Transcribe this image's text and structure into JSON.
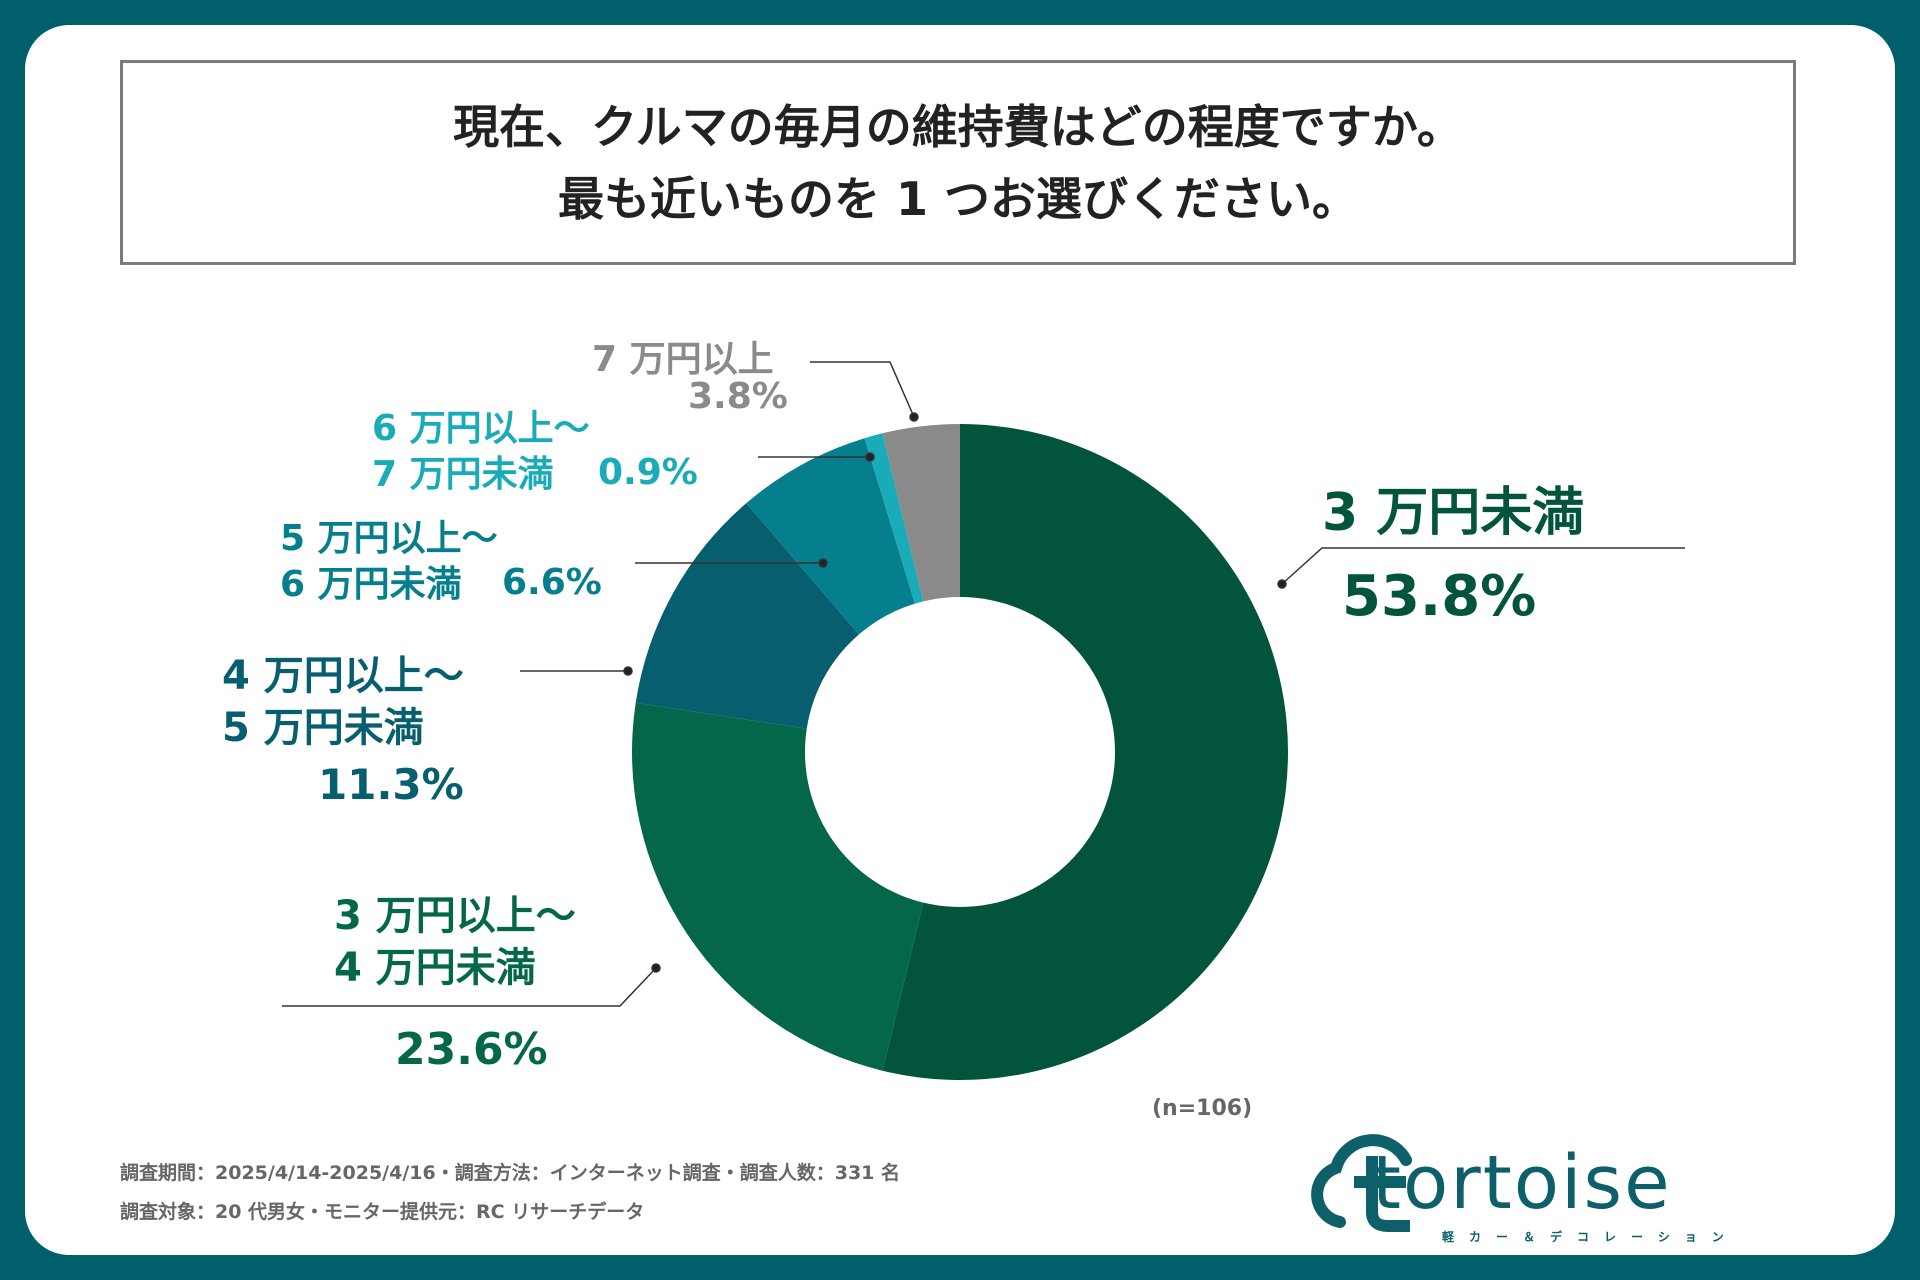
{
  "title": {
    "line1": "現在、クルマの毎月の維持費はどの程度ですか。",
    "line2": "最も近いものを 1 つお選びください。"
  },
  "chart_data": {
    "type": "pie",
    "variant": "donut",
    "title": "現在、クルマの毎月の維持費はどの程度ですか。最も近いものを 1 つお選びください。",
    "categories": [
      "3 万円未満",
      "3 万円以上～4 万円未満",
      "4 万円以上～5 万円未満",
      "5 万円以上～6 万円未満",
      "6 万円以上～7 万円未満",
      "7 万円以上"
    ],
    "values": [
      53.8,
      23.6,
      11.3,
      6.6,
      0.9,
      3.8
    ],
    "colors": [
      "#02553c",
      "#05674a",
      "#075e6f",
      "#057f8d",
      "#1aabb8",
      "#8a8a8a"
    ],
    "sample_note": "(n=106)"
  },
  "labels": [
    {
      "line1": "3 万円未満",
      "value": "53.8%"
    },
    {
      "line1": "3 万円以上～",
      "line2": "4 万円未満",
      "value": "23.6%"
    },
    {
      "line1": "4 万円以上～",
      "line2": "5 万円未満",
      "value": "11.3%"
    },
    {
      "line1": "5 万円以上～",
      "line2": "6 万円未満",
      "value": "6.6%"
    },
    {
      "line1": "6 万円以上～",
      "line2": "7 万円未満",
      "value": "0.9%"
    },
    {
      "line1": "7 万円以上",
      "value": "3.8%"
    }
  ],
  "footer": {
    "line1": "調査期間：2025/4/14-2025/4/16・調査方法：インターネット調査・調査人数：331 名",
    "line2": "調査対象：20 代男女・モニター提供元：RC リサーチデータ"
  },
  "logo": {
    "word": "tortoise",
    "subtitle": "軽カー＆デコレーション"
  }
}
